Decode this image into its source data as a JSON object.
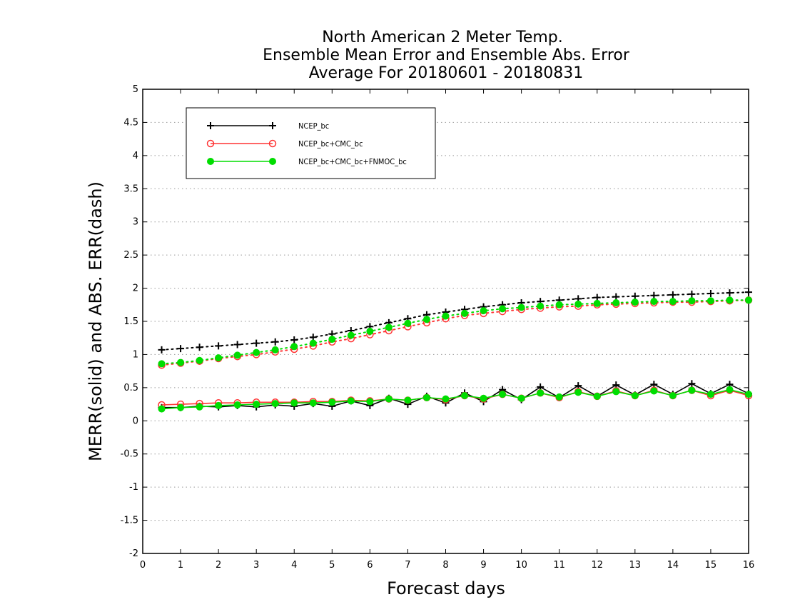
{
  "chart_data": {
    "type": "line",
    "title": [
      "North American 2 Meter Temp.",
      "Ensemble Mean Error and Ensemble Abs. Error",
      "Average For 20180601 - 20180831"
    ],
    "xlabel": "Forecast days",
    "ylabel": "MERR(solid) and ABS. ERR(dash)",
    "xlim": [
      0,
      16
    ],
    "ylim": [
      -2,
      5
    ],
    "xticks": [
      0,
      1,
      2,
      3,
      4,
      5,
      6,
      7,
      8,
      9,
      10,
      11,
      12,
      13,
      14,
      15,
      16
    ],
    "yticks": [
      -2,
      -1.5,
      -1,
      -0.5,
      0,
      0.5,
      1,
      1.5,
      2,
      2.5,
      3,
      3.5,
      4,
      4.5,
      5
    ],
    "grid": "horizontal dotted",
    "legend_position": "top-left",
    "x": [
      0.5,
      1,
      1.5,
      2,
      2.5,
      3,
      3.5,
      4,
      4.5,
      5,
      5.5,
      6,
      6.5,
      7,
      7.5,
      8,
      8.5,
      9,
      9.5,
      10,
      10.5,
      11,
      11.5,
      12,
      12.5,
      13,
      13.5,
      14,
      14.5,
      15,
      15.5,
      16
    ],
    "series": [
      {
        "name": "NCEP_bc",
        "color": "#000000",
        "marker": "plus",
        "merr": [
          0.2,
          0.2,
          0.22,
          0.21,
          0.23,
          0.21,
          0.24,
          0.22,
          0.26,
          0.22,
          0.3,
          0.23,
          0.34,
          0.25,
          0.37,
          0.27,
          0.42,
          0.29,
          0.47,
          0.32,
          0.51,
          0.35,
          0.53,
          0.37,
          0.54,
          0.39,
          0.55,
          0.4,
          0.56,
          0.41,
          0.55,
          0.41
        ],
        "abs_err": [
          1.07,
          1.09,
          1.11,
          1.13,
          1.15,
          1.17,
          1.19,
          1.22,
          1.26,
          1.31,
          1.36,
          1.42,
          1.48,
          1.54,
          1.6,
          1.64,
          1.68,
          1.72,
          1.75,
          1.78,
          1.8,
          1.82,
          1.84,
          1.86,
          1.87,
          1.88,
          1.89,
          1.9,
          1.91,
          1.92,
          1.93,
          1.94
        ]
      },
      {
        "name": "NCEP_bc+CMC_bc",
        "color": "#ff3333",
        "marker": "open-circle",
        "merr": [
          0.24,
          0.25,
          0.26,
          0.27,
          0.27,
          0.28,
          0.28,
          0.28,
          0.29,
          0.29,
          0.31,
          0.3,
          0.33,
          0.31,
          0.35,
          0.32,
          0.38,
          0.33,
          0.4,
          0.34,
          0.42,
          0.35,
          0.44,
          0.37,
          0.45,
          0.38,
          0.46,
          0.38,
          0.46,
          0.38,
          0.46,
          0.38
        ],
        "abs_err": [
          0.84,
          0.87,
          0.9,
          0.94,
          0.97,
          1.0,
          1.04,
          1.08,
          1.13,
          1.19,
          1.24,
          1.3,
          1.36,
          1.42,
          1.48,
          1.54,
          1.59,
          1.62,
          1.65,
          1.68,
          1.7,
          1.72,
          1.73,
          1.75,
          1.76,
          1.77,
          1.78,
          1.79,
          1.79,
          1.8,
          1.81,
          1.82
        ]
      },
      {
        "name": "NCEP_bc+CMC_bc+FNMOC_bc",
        "color": "#00dd00",
        "marker": "filled-circle",
        "merr": [
          0.18,
          0.2,
          0.21,
          0.23,
          0.24,
          0.25,
          0.26,
          0.27,
          0.27,
          0.28,
          0.3,
          0.29,
          0.33,
          0.31,
          0.35,
          0.33,
          0.38,
          0.34,
          0.4,
          0.34,
          0.42,
          0.36,
          0.43,
          0.37,
          0.44,
          0.38,
          0.45,
          0.38,
          0.46,
          0.4,
          0.47,
          0.4
        ],
        "abs_err": [
          0.86,
          0.88,
          0.91,
          0.95,
          0.99,
          1.03,
          1.07,
          1.12,
          1.17,
          1.23,
          1.29,
          1.35,
          1.41,
          1.47,
          1.53,
          1.58,
          1.62,
          1.66,
          1.69,
          1.71,
          1.73,
          1.75,
          1.76,
          1.77,
          1.78,
          1.79,
          1.8,
          1.8,
          1.81,
          1.81,
          1.82,
          1.82
        ]
      }
    ]
  }
}
